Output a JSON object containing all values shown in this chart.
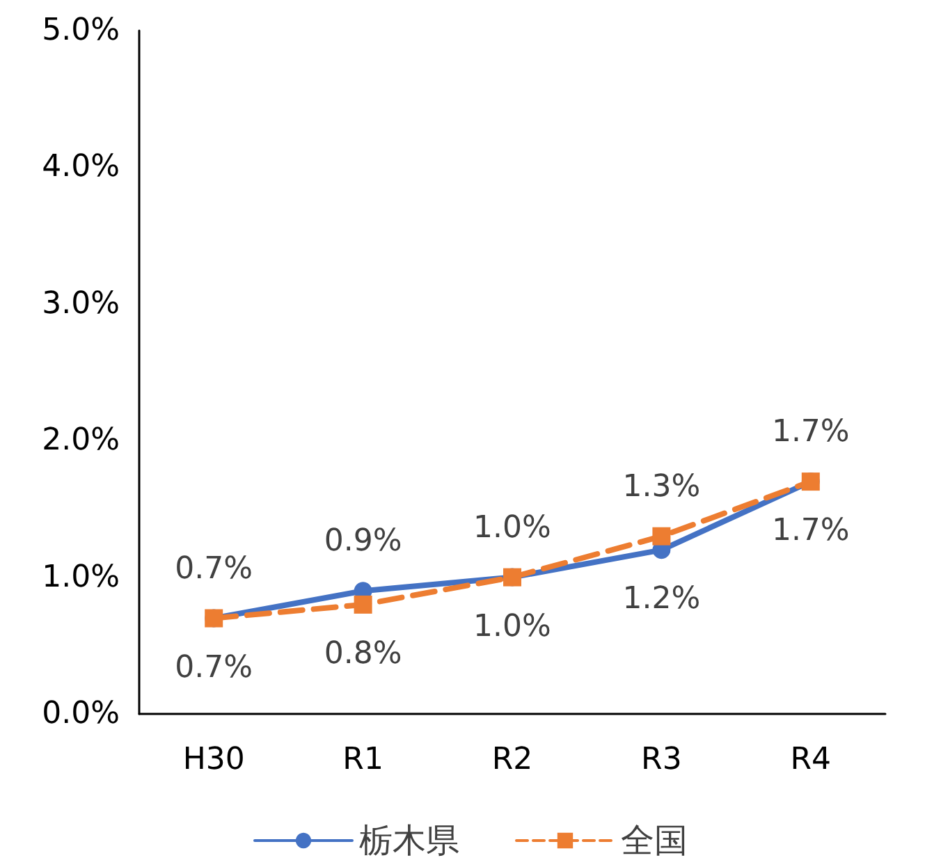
{
  "chart_data": {
    "type": "line",
    "categories": [
      "H30",
      "R1",
      "R2",
      "R3",
      "R4"
    ],
    "series": [
      {
        "name": "栃木県",
        "color": "#4472c4",
        "values": [
          0.7,
          0.9,
          1.0,
          1.2,
          1.7
        ],
        "value_labels": [
          "0.7%",
          "0.9%",
          "1.0%",
          "1.2%",
          "1.7%"
        ],
        "marker": "circle",
        "line_style": "solid"
      },
      {
        "name": "全国",
        "color": "#ed7d31",
        "values": [
          0.7,
          0.8,
          1.0,
          1.3,
          1.7
        ],
        "value_labels": [
          "0.7%",
          "0.8%",
          "1.0%",
          "1.3%",
          "1.7%"
        ],
        "marker": "square",
        "line_style": "dashed"
      }
    ],
    "ylim": [
      0,
      5
    ],
    "yticks": [
      {
        "value": 0,
        "label": "0.0%"
      },
      {
        "value": 1,
        "label": "1.0%"
      },
      {
        "value": 2,
        "label": "2.0%"
      },
      {
        "value": 3,
        "label": "3.0%"
      },
      {
        "value": 4,
        "label": "4.0%"
      },
      {
        "value": 5,
        "label": "5.0%"
      }
    ],
    "grid": false,
    "legend": "bottom"
  }
}
